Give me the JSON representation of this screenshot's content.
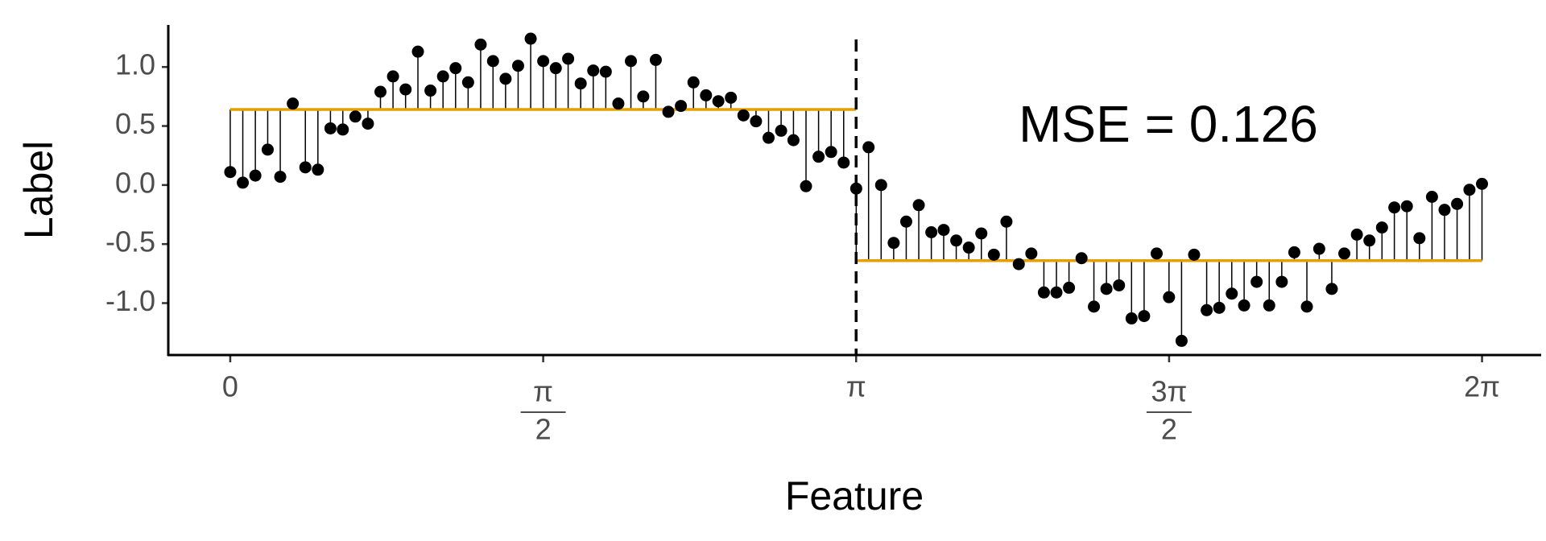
{
  "chart_data": {
    "type": "step-fit",
    "x_axis_label": "Feature",
    "y_axis_label": "Label",
    "annotation": "MSE = 0.126",
    "point_color": "#000000",
    "fit_color": "#E69F00",
    "split": 3.1416,
    "segments": [
      {
        "xlim": [
          0,
          3.1416
        ],
        "value": 0.64
      },
      {
        "xlim": [
          3.1416,
          6.2832
        ],
        "value": -0.64
      }
    ],
    "x": [
      0,
      0.063,
      0.126,
      0.188,
      0.251,
      0.314,
      0.377,
      0.44,
      0.503,
      0.565,
      0.628,
      0.691,
      0.754,
      0.817,
      0.88,
      0.942,
      1.005,
      1.068,
      1.131,
      1.194,
      1.257,
      1.319,
      1.382,
      1.445,
      1.508,
      1.571,
      1.634,
      1.696,
      1.759,
      1.822,
      1.885,
      1.948,
      2.011,
      2.073,
      2.136,
      2.199,
      2.262,
      2.325,
      2.388,
      2.45,
      2.513,
      2.576,
      2.639,
      2.702,
      2.765,
      2.827,
      2.89,
      2.953,
      3.016,
      3.079,
      3.142,
      3.204,
      3.267,
      3.33,
      3.393,
      3.456,
      3.519,
      3.581,
      3.644,
      3.707,
      3.77,
      3.833,
      3.896,
      3.958,
      4.021,
      4.084,
      4.147,
      4.21,
      4.273,
      4.335,
      4.398,
      4.461,
      4.524,
      4.587,
      4.65,
      4.712,
      4.775,
      4.838,
      4.901,
      4.964,
      5.027,
      5.089,
      5.152,
      5.215,
      5.278,
      5.341,
      5.404,
      5.466,
      5.529,
      5.592,
      5.655,
      5.718,
      5.781,
      5.843,
      5.906,
      5.969,
      6.032,
      6.095,
      6.158,
      6.22,
      6.283
    ],
    "values": [
      0.11,
      0.02,
      0.08,
      0.3,
      0.07,
      0.69,
      0.15,
      0.13,
      0.48,
      0.47,
      0.58,
      0.52,
      0.79,
      0.92,
      0.81,
      1.13,
      0.8,
      0.92,
      0.99,
      0.87,
      1.19,
      1.05,
      0.9,
      1.01,
      1.24,
      1.05,
      0.99,
      1.07,
      0.86,
      0.97,
      0.96,
      0.69,
      1.05,
      0.75,
      1.06,
      0.62,
      0.67,
      0.87,
      0.76,
      0.71,
      0.74,
      0.59,
      0.54,
      0.4,
      0.46,
      0.38,
      -0.01,
      0.24,
      0.28,
      0.19,
      -0.03,
      0.32,
      0.0,
      -0.49,
      -0.31,
      -0.17,
      -0.4,
      -0.38,
      -0.47,
      -0.53,
      -0.41,
      -0.59,
      -0.31,
      -0.67,
      -0.58,
      -0.91,
      -0.91,
      -0.87,
      -0.62,
      -1.03,
      -0.88,
      -0.85,
      -1.13,
      -1.11,
      -0.58,
      -0.95,
      -1.32,
      -0.59,
      -1.06,
      -1.04,
      -0.92,
      -1.02,
      -0.82,
      -1.02,
      -0.82,
      -0.57,
      -1.03,
      -0.54,
      -0.88,
      -0.58,
      -0.42,
      -0.47,
      -0.36,
      -0.19,
      -0.18,
      -0.45,
      -0.1,
      -0.21,
      -0.16,
      -0.04,
      0.01
    ],
    "xlim": [
      -0.311,
      6.58
    ],
    "ylim": [
      -1.44,
      1.356
    ],
    "xticks": [
      0,
      {
        "value": 1.5708,
        "label": {
          "numerator": "π",
          "denominator": "2"
        }
      },
      {
        "value": 3.1416,
        "label": "π"
      },
      {
        "value": 4.7124,
        "label": {
          "numerator": "3π",
          "denominator": "2"
        }
      },
      {
        "value": 6.2832,
        "label": "2π"
      }
    ],
    "yticks": [
      {
        "value": 1,
        "label": "1.0"
      },
      0.5,
      {
        "value": 0,
        "label": "0.0"
      },
      -0.5,
      {
        "value": -1,
        "label": "-1.0"
      }
    ]
  }
}
